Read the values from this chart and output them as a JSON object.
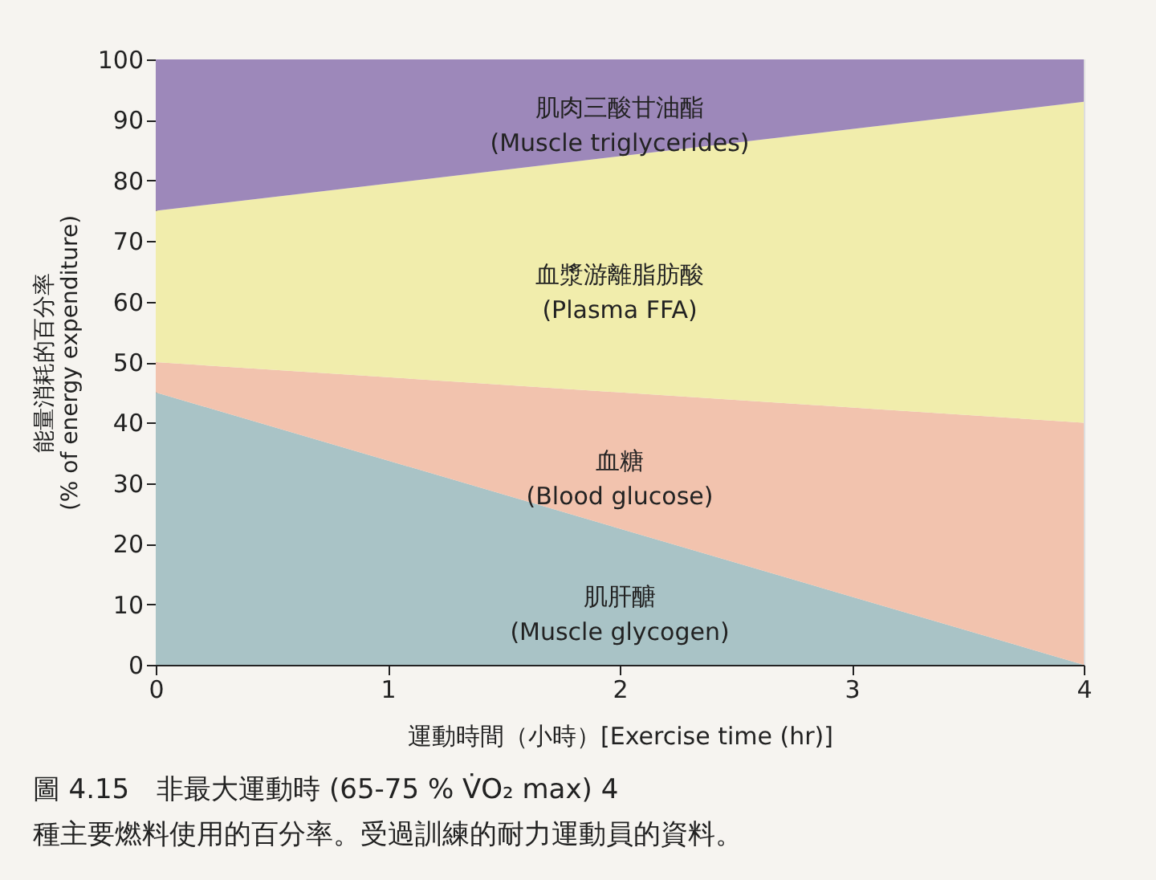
{
  "chart_data": {
    "type": "area",
    "stacked": true,
    "x": [
      0,
      4
    ],
    "series": [
      {
        "name": "肌肝醣\n(Muscle glycogen)",
        "color": "#a9c3c6",
        "values": [
          45,
          0
        ]
      },
      {
        "name": "血糖\n(Blood glucose)",
        "color": "#f2c3ae",
        "values": [
          5,
          40
        ]
      },
      {
        "name": "血漿游離脂肪酸\n(Plasma FFA)",
        "color": "#f1edac",
        "values": [
          25,
          53
        ]
      },
      {
        "name": "肌肉三酸甘油酯\n(Muscle triglycerides)",
        "color": "#9d88ba",
        "values": [
          25,
          7
        ]
      }
    ],
    "xlim": [
      0,
      4
    ],
    "xticks": [
      0,
      1,
      2,
      3,
      4
    ],
    "ylim": [
      0,
      100
    ],
    "yticks": [
      0,
      10,
      20,
      30,
      40,
      50,
      60,
      70,
      80,
      90,
      100
    ],
    "xlabel": "運動時間（小時）[Exercise time (hr)]",
    "ylabel": "能量消耗的百分率\n(% of energy expenditure)",
    "annotations": [
      "圖 4.15　非最大運動時 (65-75 % V̇O₂ max) 4 種主要燃料使用的百分率。受過訓練的耐力運動員的資料。"
    ],
    "grid": false,
    "legend": false
  }
}
